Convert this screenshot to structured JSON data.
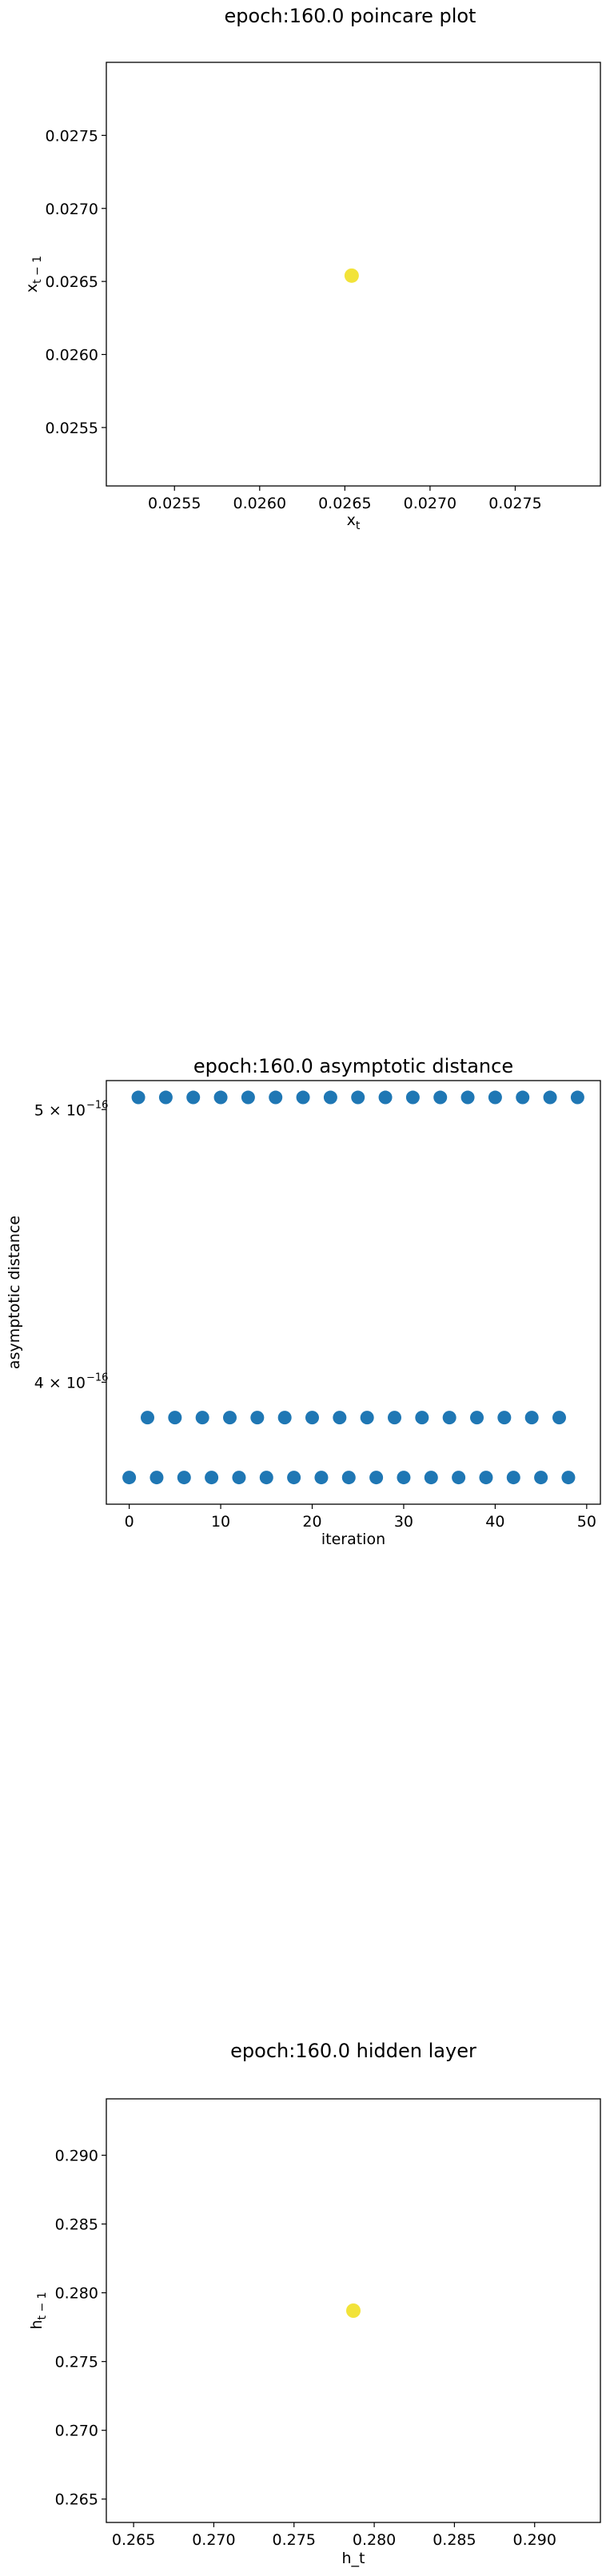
{
  "chart_data": [
    {
      "type": "scatter",
      "title": "epoch:160.0 poincare plot",
      "xlabel": "x_t",
      "ylabel": "x_{t-1}",
      "xlim": [
        0.0251,
        0.028
      ],
      "ylim": [
        0.0251,
        0.028
      ],
      "xticks": [
        0.0255,
        0.026,
        0.0265,
        0.027,
        0.0275
      ],
      "xtick_labels": [
        "0.0255",
        "0.0260",
        "0.0265",
        "0.0270",
        "0.0275"
      ],
      "yticks": [
        0.0255,
        0.026,
        0.0265,
        0.027,
        0.0275
      ],
      "ytick_labels": [
        "0.0255",
        "0.0260",
        "0.0265",
        "0.0270",
        "0.0275"
      ],
      "points": [
        {
          "x": 0.02654,
          "y": 0.02654
        }
      ],
      "color": "#f2e33a",
      "grid": false
    },
    {
      "type": "scatter",
      "title": "epoch:160.0 asymptotic distance",
      "xlabel": "iteration",
      "ylabel": "asymptotic distance",
      "yscale": "log",
      "xlim": [
        -2.5,
        51.5
      ],
      "ylim": [
        3.62e-16,
        5.12e-16
      ],
      "xticks": [
        0,
        10,
        20,
        30,
        40,
        50
      ],
      "xtick_labels": [
        "0",
        "10",
        "20",
        "30",
        "40",
        "50"
      ],
      "yticks": [
        5e-16,
        4e-16
      ],
      "ytick_labels": [
        "5 × 10",
        "4 × 10"
      ],
      "ytick_exponent": "−16",
      "series": [
        {
          "x": [
            1,
            4,
            7,
            10,
            13,
            16,
            19,
            22,
            25,
            28,
            31,
            34,
            37,
            40,
            43,
            46,
            49
          ],
          "y": [
            5.05e-16,
            5.05e-16,
            5.05e-16,
            5.05e-16,
            5.05e-16,
            5.05e-16,
            5.05e-16,
            5.05e-16,
            5.05e-16,
            5.05e-16,
            5.05e-16,
            5.05e-16,
            5.05e-16,
            5.05e-16,
            5.05e-16,
            5.05e-16,
            5.05e-16
          ]
        },
        {
          "x": [
            2,
            5,
            8,
            11,
            14,
            17,
            20,
            23,
            26,
            29,
            32,
            35,
            38,
            41,
            44,
            47
          ],
          "y": [
            3.886e-16,
            3.886e-16,
            3.886e-16,
            3.886e-16,
            3.886e-16,
            3.886e-16,
            3.886e-16,
            3.886e-16,
            3.886e-16,
            3.886e-16,
            3.886e-16,
            3.886e-16,
            3.886e-16,
            3.886e-16,
            3.886e-16,
            3.886e-16
          ]
        },
        {
          "x": [
            0,
            3,
            6,
            9,
            12,
            15,
            18,
            21,
            24,
            27,
            30,
            33,
            36,
            39,
            42,
            45,
            48
          ],
          "y": [
            3.7e-16,
            3.7e-16,
            3.7e-16,
            3.7e-16,
            3.7e-16,
            3.7e-16,
            3.7e-16,
            3.7e-16,
            3.7e-16,
            3.7e-16,
            3.7e-16,
            3.7e-16,
            3.7e-16,
            3.7e-16,
            3.7e-16,
            3.7e-16,
            3.7e-16
          ]
        }
      ],
      "color": "#1f77b4",
      "grid": false
    },
    {
      "type": "scatter",
      "title": "epoch:160.0 hidden layer",
      "xlabel": "h_t",
      "ylabel": "h_{t-1}",
      "xlim": [
        0.2633,
        0.2941
      ],
      "ylim": [
        0.2633,
        0.2941
      ],
      "xticks": [
        0.265,
        0.27,
        0.275,
        0.28,
        0.285,
        0.29
      ],
      "xtick_labels": [
        "0.265",
        "0.270",
        "0.275",
        "0.280",
        "0.285",
        "0.290"
      ],
      "yticks": [
        0.265,
        0.27,
        0.275,
        0.28,
        0.285,
        0.29
      ],
      "ytick_labels": [
        "0.265",
        "0.270",
        "0.275",
        "0.280",
        "0.285",
        "0.290"
      ],
      "points": [
        {
          "x": 0.2787,
          "y": 0.2787
        }
      ],
      "color": "#f2e33a",
      "grid": false
    }
  ]
}
